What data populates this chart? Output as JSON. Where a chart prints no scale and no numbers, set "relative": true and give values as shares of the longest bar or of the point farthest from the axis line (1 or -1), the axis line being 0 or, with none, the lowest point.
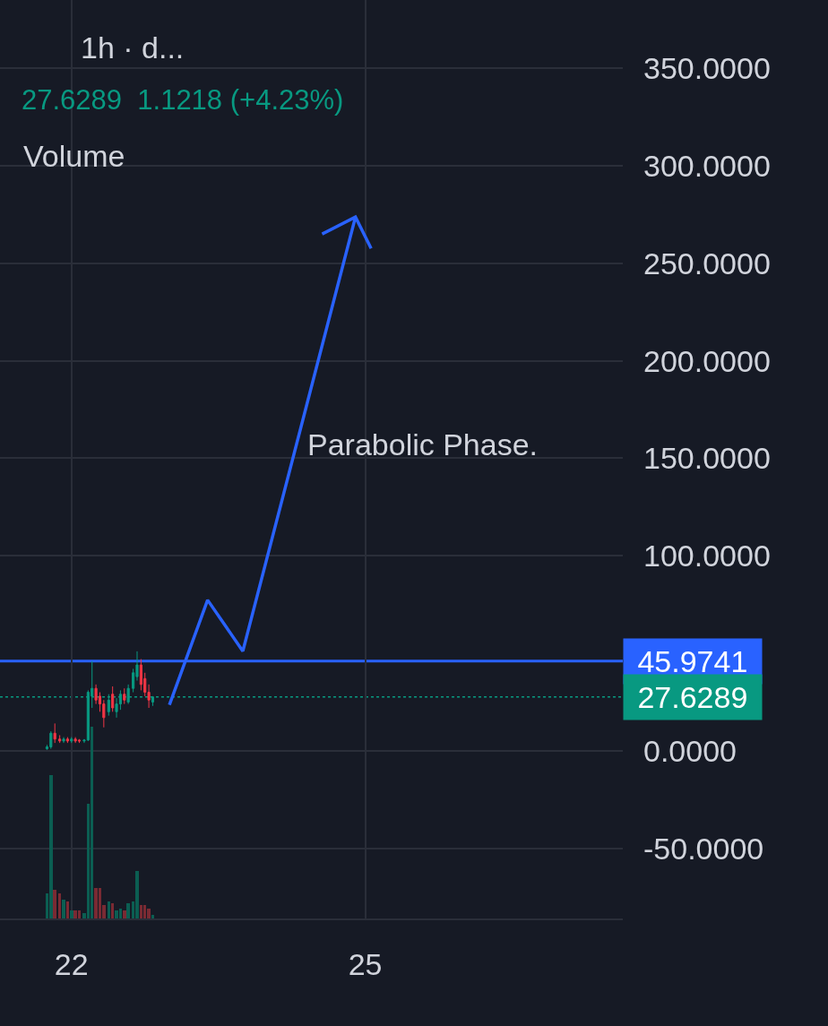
{
  "chart_data": [
    {
      "type": "candlestick",
      "title": "1h · d...",
      "subtitle": "27.6289  1.1218 (+4.23%)",
      "annotations": [
        "Volume",
        "Parabolic Phase."
      ],
      "x": [
        21.75,
        21.79,
        21.83,
        21.88,
        21.92,
        21.96,
        22.0,
        22.04,
        22.08,
        22.13,
        22.17,
        22.21,
        22.25,
        22.29,
        22.33,
        22.38,
        22.42,
        22.46,
        22.5,
        22.54,
        22.58,
        22.63,
        22.67,
        22.71,
        22.75,
        22.79,
        22.83
      ],
      "ohlc": [
        [
          1,
          3,
          0.5,
          2
        ],
        [
          2,
          10,
          1,
          9
        ],
        [
          9,
          14,
          4,
          6
        ],
        [
          6,
          8,
          4,
          5
        ],
        [
          5,
          7,
          4,
          6
        ],
        [
          6,
          7,
          4,
          5
        ],
        [
          5,
          7,
          4,
          6
        ],
        [
          6,
          7,
          4,
          5
        ],
        [
          5.5,
          6,
          4,
          5
        ],
        [
          5,
          6,
          4,
          5.5
        ],
        [
          5.5,
          31,
          5,
          30
        ],
        [
          28,
          46,
          22,
          32
        ],
        [
          32,
          34,
          24,
          26
        ],
        [
          28,
          30,
          20,
          24
        ],
        [
          24,
          26,
          12,
          17
        ],
        [
          20,
          29,
          18,
          26
        ],
        [
          29,
          33,
          20,
          22
        ],
        [
          20,
          27,
          17,
          24
        ],
        [
          24,
          31,
          21,
          29
        ],
        [
          29,
          32,
          24,
          26
        ],
        [
          25,
          34,
          24,
          32
        ],
        [
          32,
          42,
          30,
          40
        ],
        [
          38,
          51,
          36,
          44
        ],
        [
          44,
          47,
          31,
          34
        ],
        [
          37,
          40,
          28,
          30
        ],
        [
          30,
          34,
          22,
          26
        ],
        [
          25,
          28,
          23,
          27.6
        ]
      ],
      "colors": [
        "#089981",
        "#089981",
        "#f23645",
        "#f23645",
        "#089981",
        "#f23645",
        "#089981",
        "#f23645",
        "#f23645",
        "#089981",
        "#089981",
        "#089981",
        "#f23645",
        "#f23645",
        "#f23645",
        "#089981",
        "#f23645",
        "#089981",
        "#089981",
        "#f23645",
        "#089981",
        "#089981",
        "#089981",
        "#f23645",
        "#f23645",
        "#f23645",
        "#089981"
      ],
      "series": [
        {
          "type": "line",
          "color": "#2962ff",
          "x": [
            23.0,
            23.39,
            23.75,
            24.9,
            24.56,
            24.9,
            25.06
          ],
          "values": [
            23.5,
            77.3,
            51.1,
            273.7,
            265,
            273.7,
            257.6
          ]
        }
      ],
      "ref_lines": [
        {
          "axis": "y",
          "value": 45.9741,
          "label": "45.9741",
          "color": "#2962ff",
          "line_style": "solid"
        },
        {
          "axis": "y",
          "value": 27.6289,
          "label": "27.6289",
          "color": "#089981",
          "line_style": "dotted"
        }
      ],
      "xlim": [
        21.27,
        27.63
      ],
      "xticks": [
        22,
        25
      ],
      "ylim": [
        -86,
        385
      ],
      "yticks": [
        {
          "value": -50,
          "label": "-50.0000"
        },
        {
          "value": 0,
          "label": "0.0000"
        },
        {
          "value": 100,
          "label": "100.0000"
        },
        {
          "value": 150,
          "label": "150.0000"
        },
        {
          "value": 200,
          "label": "200.0000"
        },
        {
          "value": 250,
          "label": "250.0000"
        },
        {
          "value": 300,
          "label": "300.0000"
        },
        {
          "value": 350,
          "label": "350.0000"
        }
      ],
      "grid": true
    },
    {
      "type": "bar",
      "relative": true,
      "x": [
        21.75,
        21.79,
        21.83,
        21.88,
        21.92,
        21.96,
        22.0,
        22.04,
        22.08,
        22.13,
        22.17,
        22.21,
        22.25,
        22.29,
        22.33,
        22.38,
        22.42,
        22.46,
        22.5,
        22.54,
        22.58,
        22.63,
        22.67,
        22.71,
        22.75,
        22.79,
        22.83
      ],
      "values": [
        0.13,
        0.75,
        0.15,
        0.13,
        0.1,
        0.09,
        0.04,
        0.04,
        0.04,
        0.03,
        0.6,
        1,
        0.16,
        0.16,
        0.07,
        0.09,
        0.08,
        0.04,
        0.05,
        0.04,
        0.08,
        0.09,
        0.25,
        0.07,
        0.07,
        0.05,
        0.02
      ],
      "colors": [
        "#0b5e52",
        "#0b5e52",
        "#7a2a33",
        "#7a2a33",
        "#0b5e52",
        "#7a2a33",
        "#0b5e52",
        "#7a2a33",
        "#7a2a33",
        "#0b5e52",
        "#0b5e52",
        "#0b5e52",
        "#7a2a33",
        "#7a2a33",
        "#7a2a33",
        "#0b5e52",
        "#7a2a33",
        "#0b5e52",
        "#0b5e52",
        "#7a2a33",
        "#0b5e52",
        "#0b5e52",
        "#0b5e52",
        "#7a2a33",
        "#7a2a33",
        "#7a2a33",
        "#0b5e52"
      ],
      "xlim": [
        21.27,
        27.63
      ]
    }
  ]
}
